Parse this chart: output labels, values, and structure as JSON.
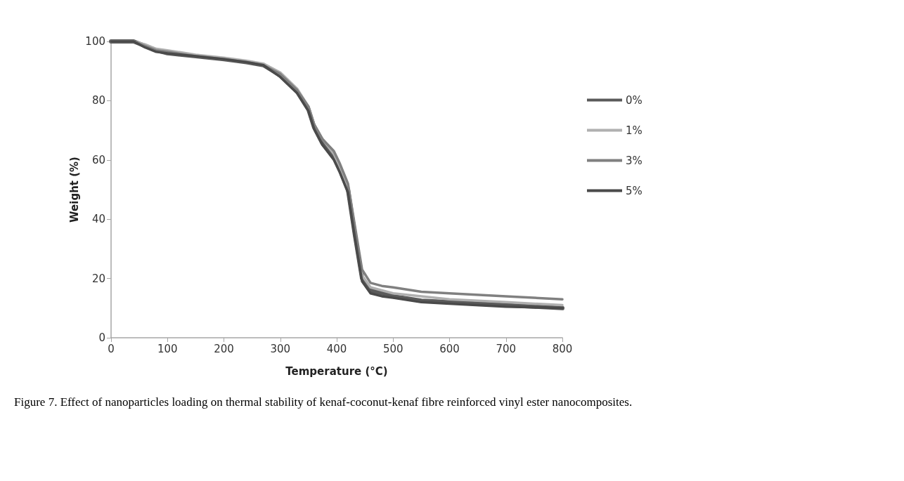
{
  "chart_data": {
    "type": "line",
    "xlabel": "Temperature (°C)",
    "ylabel": "Weight (%)",
    "annotations": [
      "Figure 7. Effect of nanoparticles loading on thermal stability of kenaf-coconut-kenaf fibre reinforced vinyl ester nanocomposites."
    ],
    "xlim": [
      0,
      800
    ],
    "xticks": [
      0,
      100,
      200,
      300,
      400,
      500,
      600,
      700,
      800
    ],
    "ylim": [
      0,
      100
    ],
    "yticks": [
      0,
      20,
      40,
      60,
      80,
      100
    ],
    "grid": false,
    "legend": "right",
    "marker": "none",
    "line_style": "solid",
    "series": [
      {
        "name": "0%",
        "color": "#5a5a5a",
        "x": [
          0,
          40,
          60,
          80,
          100,
          150,
          200,
          240,
          270,
          300,
          330,
          350,
          360,
          375,
          395,
          405,
          420,
          432,
          445,
          460,
          480,
          500,
          550,
          600,
          700,
          800
        ],
        "values": [
          100,
          100,
          98.5,
          97,
          96,
          95,
          94,
          93,
          92,
          88.5,
          83,
          77,
          71,
          65.5,
          61,
          57,
          50,
          35,
          20,
          16,
          15,
          14,
          12.5,
          12,
          11,
          10
        ]
      },
      {
        "name": "1%",
        "color": "#b0b0b0",
        "x": [
          0,
          40,
          60,
          80,
          100,
          150,
          200,
          240,
          270,
          300,
          330,
          350,
          360,
          375,
          395,
          405,
          420,
          432,
          445,
          460,
          480,
          500,
          550,
          600,
          700,
          800
        ],
        "values": [
          100,
          100,
          99,
          97.5,
          97,
          95.5,
          94.5,
          93.5,
          92.5,
          89.5,
          84,
          78,
          72,
          67,
          62,
          58,
          51,
          36,
          21,
          17,
          16,
          15,
          14,
          13,
          12,
          11
        ]
      },
      {
        "name": "3%",
        "color": "#808080",
        "x": [
          0,
          40,
          60,
          80,
          100,
          150,
          200,
          240,
          270,
          300,
          330,
          350,
          360,
          375,
          395,
          405,
          420,
          432,
          445,
          460,
          480,
          500,
          550,
          600,
          700,
          800
        ],
        "values": [
          100,
          100,
          98.5,
          97,
          96.5,
          95,
          94,
          93,
          92,
          89,
          83.5,
          78,
          72,
          67,
          63,
          59,
          52,
          38,
          23,
          18.5,
          17.5,
          17,
          15.5,
          15,
          14,
          13
        ]
      },
      {
        "name": "5%",
        "color": "#4a4a4a",
        "x": [
          0,
          40,
          60,
          80,
          100,
          150,
          200,
          240,
          270,
          300,
          330,
          350,
          360,
          375,
          395,
          405,
          420,
          432,
          445,
          460,
          480,
          500,
          550,
          600,
          700,
          800
        ],
        "values": [
          100,
          100,
          98,
          96.5,
          96,
          95,
          94,
          93,
          92,
          88,
          82.5,
          76.5,
          70.5,
          65,
          60,
          56,
          49,
          34,
          19,
          15,
          14,
          13.5,
          12,
          11.5,
          10.5,
          10
        ]
      }
    ]
  }
}
